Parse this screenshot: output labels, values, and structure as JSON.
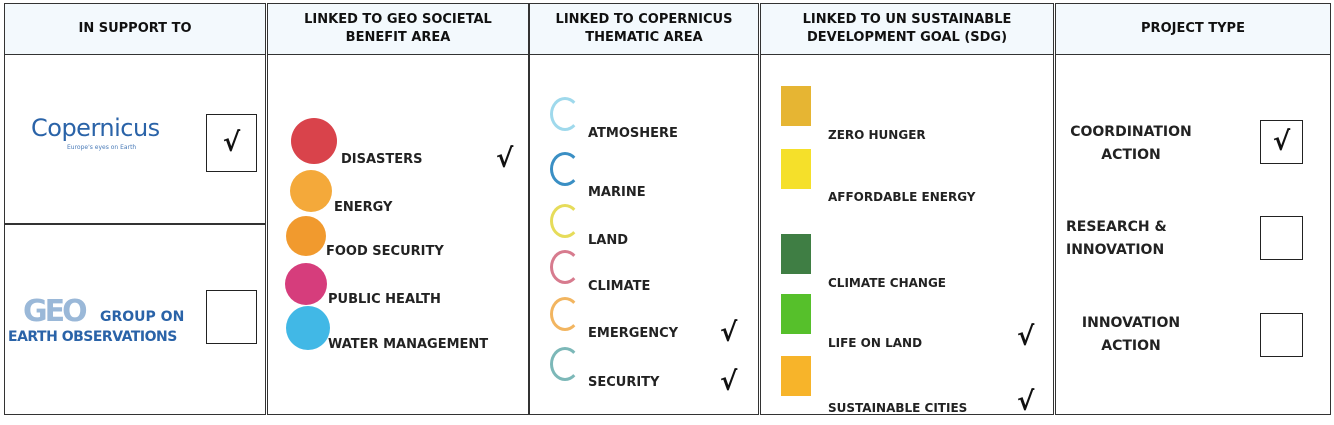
{
  "check_mark": "√",
  "columns": [
    {
      "header": "IN SUPPORT TO",
      "items": [
        {
          "label": "Copernicus",
          "tagline": "Europe's eyes on Earth",
          "checked": true
        },
        {
          "label": "GEO",
          "line1": "GROUP ON",
          "line2": "EARTH OBSERVATIONS",
          "checked": false
        }
      ]
    },
    {
      "header": "LINKED TO GEO SOCIETAL BENEFIT AREA",
      "items": [
        {
          "label": "DISASTERS",
          "color": "#d9434b",
          "checked": true
        },
        {
          "label": "ENERGY",
          "color": "#f4a93a",
          "checked": false
        },
        {
          "label": "FOOD SECURITY",
          "color": "#f19a2e",
          "checked": false
        },
        {
          "label": "PUBLIC HEALTH",
          "color": "#d63d7c",
          "checked": false
        },
        {
          "label": "WATER MANAGEMENT",
          "color": "#41b8e6",
          "checked": false
        }
      ]
    },
    {
      "header": "LINKED TO COPERNICUS THEMATIC AREA",
      "items": [
        {
          "label": "ATMOSHERE",
          "color": "#9fd9ec",
          "checked": false
        },
        {
          "label": "MARINE",
          "color": "#3a8fc4",
          "checked": false
        },
        {
          "label": "LAND",
          "color": "#e6dc5a",
          "checked": false
        },
        {
          "label": "CLIMATE",
          "color": "#d77b8e",
          "checked": false
        },
        {
          "label": "EMERGENCY",
          "color": "#f2b560",
          "checked": true
        },
        {
          "label": "SECURITY",
          "color": "#7cb8b8",
          "checked": true
        }
      ]
    },
    {
      "header": "LINKED TO UN SUSTAINABLE DEVELOPMENT GOAL (SDG)",
      "items": [
        {
          "label": "ZERO HUNGER",
          "color": "#e6b533",
          "checked": false
        },
        {
          "label": "AFFORDABLE ENERGY",
          "color": "#f5e02a",
          "checked": false
        },
        {
          "label": "CLIMATE CHANGE",
          "color": "#3f7e44",
          "checked": false
        },
        {
          "label": "LIFE ON LAND",
          "color": "#56c02b",
          "checked": true
        },
        {
          "label": "SUSTAINABLE CITIES",
          "color": "#f7b42a",
          "checked": true
        }
      ]
    },
    {
      "header": "PROJECT TYPE",
      "items": [
        {
          "label": "COORDINATION ACTION",
          "checked": true
        },
        {
          "label": "RESEARCH & INNOVATION",
          "checked": false
        },
        {
          "label": "INNOVATION ACTION",
          "checked": false
        }
      ]
    }
  ]
}
